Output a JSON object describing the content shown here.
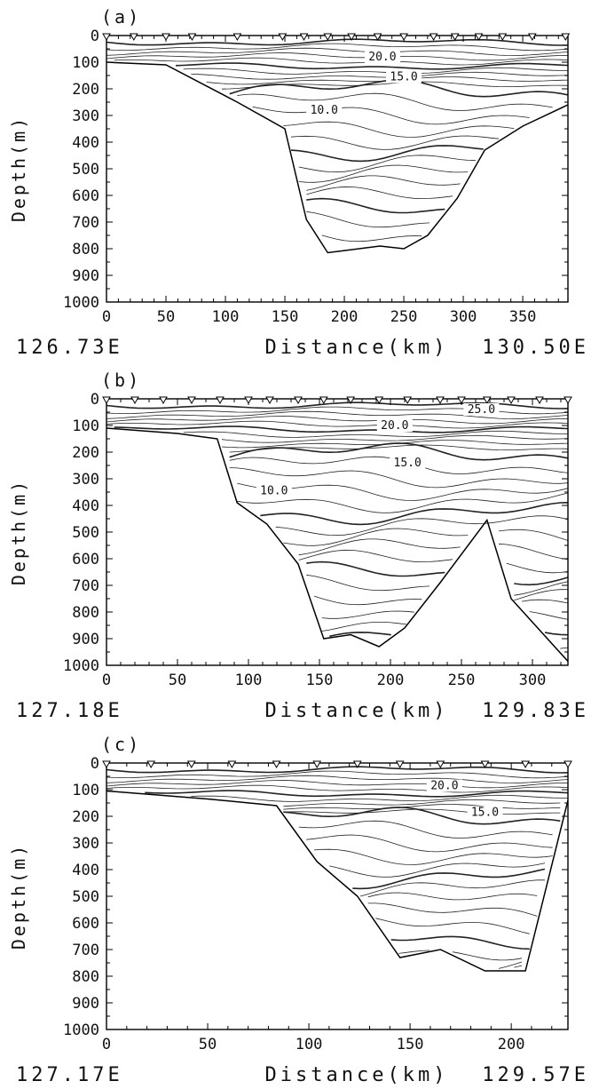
{
  "chart_data": [
    {
      "panel_label": "(a)",
      "type": "contour",
      "ylabel": "Depth(m)",
      "xlabel_left": "126.73E",
      "xlabel_center": "Distance(km)",
      "xlabel_right": "130.50E",
      "xlim": [
        0,
        388
      ],
      "ylim": [
        1000,
        0
      ],
      "x_ticks": [
        0,
        50,
        100,
        150,
        200,
        250,
        300,
        350
      ],
      "y_ticks": [
        0,
        100,
        200,
        300,
        400,
        500,
        600,
        700,
        800,
        900,
        1000
      ],
      "stations_km": [
        0,
        23,
        50,
        72,
        110,
        148,
        166,
        186,
        206,
        228,
        250,
        275,
        293,
        313,
        333,
        358,
        386
      ],
      "contour_labels": [
        {
          "text": "20.0",
          "x": 232,
          "y": 90
        },
        {
          "text": "15.0",
          "x": 250,
          "y": 165
        },
        {
          "text": "10.0",
          "x": 183,
          "y": 290
        }
      ],
      "bottom_profile": [
        [
          0,
          100
        ],
        [
          50,
          110
        ],
        [
          110,
          250
        ],
        [
          150,
          350
        ],
        [
          168,
          690
        ],
        [
          186,
          815
        ],
        [
          230,
          790
        ],
        [
          250,
          800
        ],
        [
          270,
          750
        ],
        [
          295,
          610
        ],
        [
          318,
          430
        ],
        [
          350,
          340
        ],
        [
          388,
          260
        ]
      ]
    },
    {
      "panel_label": "(b)",
      "type": "contour",
      "ylabel": "Depth(m)",
      "xlabel_left": "127.18E",
      "xlabel_center": "Distance(km)",
      "xlabel_right": "129.83E",
      "xlim": [
        0,
        325
      ],
      "ylim": [
        1000,
        0
      ],
      "x_ticks": [
        0,
        50,
        100,
        150,
        200,
        250,
        300
      ],
      "y_ticks": [
        0,
        100,
        200,
        300,
        400,
        500,
        600,
        700,
        800,
        900,
        1000
      ],
      "stations_km": [
        0,
        20,
        40,
        60,
        80,
        100,
        115,
        135,
        153,
        172,
        192,
        212,
        235,
        250,
        268,
        285,
        305,
        325
      ],
      "contour_labels": [
        {
          "text": "25.0",
          "x": 264,
          "y": 50
        },
        {
          "text": "20.0",
          "x": 203,
          "y": 110
        },
        {
          "text": "15.0",
          "x": 212,
          "y": 250
        },
        {
          "text": "10.0",
          "x": 118,
          "y": 355
        }
      ],
      "bottom_profile": [
        [
          0,
          110
        ],
        [
          50,
          130
        ],
        [
          78,
          150
        ],
        [
          92,
          390
        ],
        [
          113,
          470
        ],
        [
          135,
          620
        ],
        [
          153,
          900
        ],
        [
          172,
          885
        ],
        [
          192,
          930
        ],
        [
          210,
          860
        ],
        [
          235,
          690
        ],
        [
          268,
          455
        ],
        [
          285,
          750
        ],
        [
          325,
          985
        ]
      ]
    },
    {
      "panel_label": "(c)",
      "type": "contour",
      "ylabel": "Depth(m)",
      "xlabel_left": "127.17E",
      "xlabel_center": "Distance(km)",
      "xlabel_right": "129.57E",
      "xlim": [
        0,
        228
      ],
      "ylim": [
        1000,
        0
      ],
      "x_ticks": [
        0,
        50,
        100,
        150,
        200
      ],
      "y_ticks": [
        0,
        100,
        200,
        300,
        400,
        500,
        600,
        700,
        800,
        900,
        1000
      ],
      "stations_km": [
        0,
        22,
        42,
        62,
        84,
        104,
        124,
        145,
        165,
        187,
        207,
        228
      ],
      "contour_labels": [
        {
          "text": "20.0",
          "x": 167,
          "y": 95
        },
        {
          "text": "15.0",
          "x": 187,
          "y": 195
        }
      ],
      "bottom_profile": [
        [
          0,
          105
        ],
        [
          50,
          135
        ],
        [
          84,
          160
        ],
        [
          104,
          370
        ],
        [
          124,
          500
        ],
        [
          145,
          730
        ],
        [
          165,
          700
        ],
        [
          187,
          780
        ],
        [
          207,
          780
        ],
        [
          228,
          140
        ]
      ]
    }
  ]
}
